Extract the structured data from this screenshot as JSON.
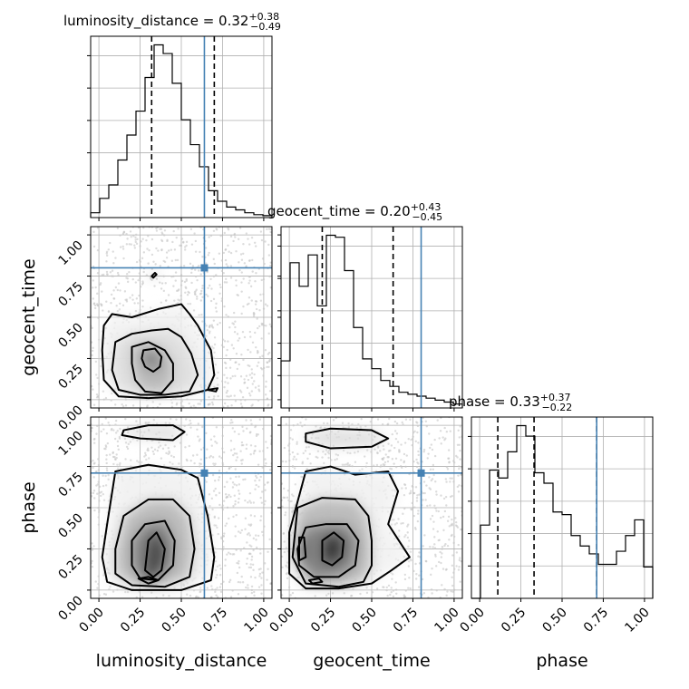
{
  "chart_data": {
    "type": "corner",
    "parameters": [
      "luminosity_distance",
      "geocent_time",
      "phase"
    ],
    "grid": true,
    "tick_labels": [
      "0.00",
      "0.25",
      "0.50",
      "0.75",
      "1.00"
    ],
    "ticks": [
      0.0,
      0.25,
      0.5,
      0.75,
      1.0
    ],
    "range": [
      -0.05,
      1.05
    ],
    "truths": {
      "luminosity_distance": 0.64,
      "geocent_time": 0.8,
      "phase": 0.71
    },
    "truth_color": "#4682b4",
    "titles": [
      {
        "param": "luminosity_distance",
        "prefix": "luminosity_distance = ",
        "median": "0.32",
        "plus": "+0.38",
        "minus": "−0.49"
      },
      {
        "param": "geocent_time",
        "prefix": "geocent_time = ",
        "median": "0.20",
        "plus": "+0.43",
        "minus": "−0.45"
      },
      {
        "param": "phase",
        "prefix": "phase = ",
        "median": "0.33",
        "plus": "+0.37",
        "minus": "−0.22"
      }
    ],
    "histograms": [
      {
        "param": "luminosity_distance",
        "bin_edges": [
          -0.05,
          0.005,
          0.06,
          0.115,
          0.17,
          0.225,
          0.28,
          0.335,
          0.39,
          0.445,
          0.5,
          0.555,
          0.61,
          0.665,
          0.72,
          0.775,
          0.83,
          0.885,
          0.94,
          0.995,
          1.05
        ],
        "counts": [
          5,
          20,
          34,
          60,
          86,
          111,
          146,
          180,
          171,
          140,
          102,
          76,
          53,
          28,
          17,
          11,
          8,
          5,
          3,
          2
        ],
        "quantiles": [
          0.32,
          0.7
        ]
      },
      {
        "param": "geocent_time",
        "bin_edges": [
          -0.05,
          0.005,
          0.06,
          0.115,
          0.17,
          0.225,
          0.28,
          0.335,
          0.39,
          0.445,
          0.5,
          0.555,
          0.61,
          0.665,
          0.72,
          0.775,
          0.83,
          0.885,
          0.94,
          0.995,
          1.05
        ],
        "counts": [
          24,
          74,
          62,
          78,
          52,
          88,
          87,
          70,
          41,
          25,
          20,
          14,
          11,
          8,
          7,
          6,
          5,
          4,
          3,
          2
        ],
        "quantiles": [
          0.2,
          0.63
        ]
      },
      {
        "param": "phase",
        "bin_edges": [
          -0.05,
          0.005,
          0.06,
          0.115,
          0.17,
          0.225,
          0.28,
          0.335,
          0.39,
          0.445,
          0.5,
          0.555,
          0.61,
          0.665,
          0.72,
          0.775,
          0.83,
          0.885,
          0.94,
          0.995,
          1.05
        ],
        "counts": [
          0,
          28,
          49,
          46,
          56,
          66,
          62,
          48,
          44,
          33,
          32,
          24,
          20,
          17,
          13,
          13,
          18,
          24,
          30,
          12
        ],
        "quantiles": [
          0.11,
          0.33,
          0.71
        ]
      }
    ],
    "contour_panels": [
      {
        "x": "luminosity_distance",
        "y": "geocent_time",
        "contours": [
          [
            [
              0.03,
              0.45
            ],
            [
              0.08,
              0.52
            ],
            [
              0.2,
              0.5
            ],
            [
              0.36,
              0.55
            ],
            [
              0.5,
              0.58
            ],
            [
              0.55,
              0.52
            ],
            [
              0.6,
              0.45
            ],
            [
              0.68,
              0.3
            ],
            [
              0.7,
              0.15
            ],
            [
              0.66,
              0.06
            ],
            [
              0.5,
              0.02
            ],
            [
              0.3,
              0.01
            ],
            [
              0.12,
              0.02
            ],
            [
              0.03,
              0.12
            ],
            [
              0.02,
              0.3
            ]
          ],
          [
            [
              0.1,
              0.35
            ],
            [
              0.2,
              0.4
            ],
            [
              0.32,
              0.42
            ],
            [
              0.42,
              0.43
            ],
            [
              0.5,
              0.38
            ],
            [
              0.56,
              0.28
            ],
            [
              0.6,
              0.15
            ],
            [
              0.55,
              0.05
            ],
            [
              0.4,
              0.03
            ],
            [
              0.25,
              0.03
            ],
            [
              0.12,
              0.06
            ],
            [
              0.08,
              0.18
            ]
          ],
          [
            [
              0.2,
              0.32
            ],
            [
              0.3,
              0.35
            ],
            [
              0.4,
              0.3
            ],
            [
              0.45,
              0.22
            ],
            [
              0.45,
              0.12
            ],
            [
              0.38,
              0.04
            ],
            [
              0.28,
              0.05
            ],
            [
              0.22,
              0.12
            ],
            [
              0.2,
              0.22
            ]
          ],
          [
            [
              0.27,
              0.3
            ],
            [
              0.34,
              0.31
            ],
            [
              0.38,
              0.26
            ],
            [
              0.37,
              0.2
            ],
            [
              0.33,
              0.17
            ],
            [
              0.28,
              0.2
            ],
            [
              0.26,
              0.25
            ]
          ],
          [
            [
              0.33,
              0.74
            ],
            [
              0.35,
              0.76
            ],
            [
              0.34,
              0.77
            ],
            [
              0.32,
              0.75
            ]
          ],
          [
            [
              0.66,
              0.06
            ],
            [
              0.72,
              0.07
            ],
            [
              0.71,
              0.05
            ]
          ]
        ]
      },
      {
        "x": "luminosity_distance",
        "y": "phase",
        "contours": [
          [
            [
              0.05,
              0.4
            ],
            [
              0.1,
              0.72
            ],
            [
              0.3,
              0.76
            ],
            [
              0.5,
              0.73
            ],
            [
              0.6,
              0.68
            ],
            [
              0.66,
              0.45
            ],
            [
              0.7,
              0.2
            ],
            [
              0.68,
              0.06
            ],
            [
              0.5,
              0.0
            ],
            [
              0.2,
              0.0
            ],
            [
              0.05,
              0.05
            ],
            [
              0.02,
              0.2
            ]
          ],
          [
            [
              0.15,
              0.97
            ],
            [
              0.3,
              1.0
            ],
            [
              0.45,
              1.0
            ],
            [
              0.52,
              0.96
            ],
            [
              0.45,
              0.91
            ],
            [
              0.25,
              0.92
            ],
            [
              0.14,
              0.94
            ]
          ],
          [
            [
              0.1,
              0.25
            ],
            [
              0.15,
              0.45
            ],
            [
              0.3,
              0.55
            ],
            [
              0.45,
              0.55
            ],
            [
              0.55,
              0.45
            ],
            [
              0.58,
              0.25
            ],
            [
              0.55,
              0.08
            ],
            [
              0.4,
              0.02
            ],
            [
              0.2,
              0.03
            ],
            [
              0.1,
              0.1
            ]
          ],
          [
            [
              0.2,
              0.3
            ],
            [
              0.28,
              0.4
            ],
            [
              0.4,
              0.42
            ],
            [
              0.46,
              0.3
            ],
            [
              0.45,
              0.15
            ],
            [
              0.36,
              0.06
            ],
            [
              0.25,
              0.07
            ],
            [
              0.2,
              0.15
            ]
          ],
          [
            [
              0.28,
              0.12
            ],
            [
              0.3,
              0.3
            ],
            [
              0.35,
              0.35
            ],
            [
              0.4,
              0.25
            ],
            [
              0.38,
              0.12
            ],
            [
              0.33,
              0.08
            ]
          ],
          [
            [
              0.24,
              0.07
            ],
            [
              0.3,
              0.08
            ],
            [
              0.36,
              0.06
            ],
            [
              0.3,
              0.04
            ]
          ]
        ]
      },
      {
        "x": "geocent_time",
        "y": "phase",
        "contours": [
          [
            [
              0.0,
              0.35
            ],
            [
              0.1,
              0.72
            ],
            [
              0.25,
              0.75
            ],
            [
              0.4,
              0.7
            ],
            [
              0.6,
              0.72
            ],
            [
              0.66,
              0.6
            ],
            [
              0.6,
              0.4
            ],
            [
              0.73,
              0.2
            ],
            [
              0.62,
              0.12
            ],
            [
              0.5,
              0.04
            ],
            [
              0.3,
              0.01
            ],
            [
              0.1,
              0.01
            ],
            [
              0.0,
              0.1
            ]
          ],
          [
            [
              0.1,
              0.95
            ],
            [
              0.25,
              0.98
            ],
            [
              0.5,
              0.97
            ],
            [
              0.6,
              0.92
            ],
            [
              0.5,
              0.87
            ],
            [
              0.25,
              0.86
            ],
            [
              0.1,
              0.9
            ]
          ],
          [
            [
              0.02,
              0.2
            ],
            [
              0.05,
              0.5
            ],
            [
              0.2,
              0.56
            ],
            [
              0.4,
              0.55
            ],
            [
              0.48,
              0.45
            ],
            [
              0.5,
              0.3
            ],
            [
              0.5,
              0.15
            ],
            [
              0.45,
              0.05
            ],
            [
              0.3,
              0.02
            ],
            [
              0.1,
              0.04
            ]
          ],
          [
            [
              0.05,
              0.25
            ],
            [
              0.1,
              0.38
            ],
            [
              0.22,
              0.4
            ],
            [
              0.35,
              0.4
            ],
            [
              0.42,
              0.3
            ],
            [
              0.4,
              0.15
            ],
            [
              0.3,
              0.08
            ],
            [
              0.15,
              0.08
            ],
            [
              0.06,
              0.15
            ]
          ],
          [
            [
              0.06,
              0.18
            ],
            [
              0.06,
              0.32
            ],
            [
              0.09,
              0.32
            ],
            [
              0.1,
              0.2
            ]
          ],
          [
            [
              0.2,
              0.18
            ],
            [
              0.2,
              0.3
            ],
            [
              0.27,
              0.35
            ],
            [
              0.33,
              0.3
            ],
            [
              0.32,
              0.2
            ],
            [
              0.26,
              0.15
            ]
          ],
          [
            [
              0.12,
              0.06
            ],
            [
              0.18,
              0.07
            ],
            [
              0.2,
              0.05
            ],
            [
              0.14,
              0.04
            ]
          ]
        ]
      }
    ]
  }
}
